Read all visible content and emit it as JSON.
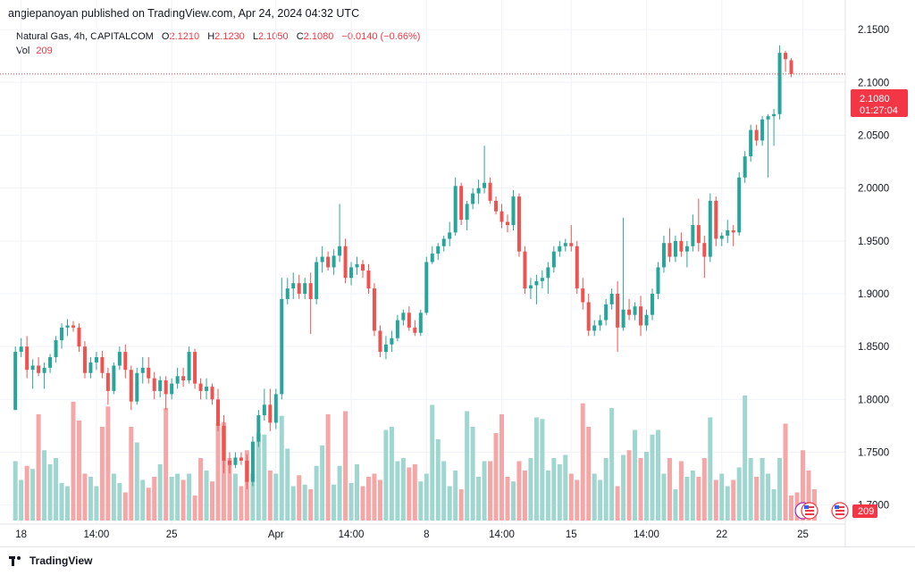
{
  "header": {
    "publisher": "angiepanoyan published on TradingView.com, Apr 24, 2024 04:32 UTC"
  },
  "legend": {
    "symbol": "Natural Gas, 4h, CAPITALCOM",
    "open_label": "O",
    "open": "2.1210",
    "high_label": "H",
    "high": "2.1230",
    "low_label": "L",
    "low": "2.1050",
    "close_label": "C",
    "close": "2.1080",
    "change": "−0.0140 (−0.66%)",
    "vol_label": "Vol",
    "vol": "209"
  },
  "price_tag": {
    "price": "2.1080",
    "countdown": "01:27:04"
  },
  "vol_tag": "209",
  "footer": {
    "brand": "TradingView"
  },
  "colors": {
    "up": "#26a69a",
    "down": "#ef5350",
    "vol_up": "#9fd6d0",
    "vol_down": "#f5a6a6",
    "tag": "#f23645"
  },
  "icons": [
    "tradingview-logo-icon",
    "us-flag-event-icon"
  ],
  "chart_data": {
    "type": "candlestick",
    "title": "Natural Gas, 4h, CAPITALCOM",
    "y_axis_ticks": [
      "2.1500",
      "2.1000",
      "2.0500",
      "2.0000",
      "1.9500",
      "1.9000",
      "1.8500",
      "1.8000",
      "1.7500",
      "1.7000"
    ],
    "ylim": [
      1.682,
      2.178
    ],
    "x_axis_ticks": [
      "18",
      "14:00",
      "25",
      "Apr",
      "14:00",
      "8",
      "14:00",
      "15",
      "14:00",
      "22",
      "25"
    ],
    "x_tick_bars": [
      1,
      14,
      27,
      45,
      58,
      71,
      84,
      96,
      109,
      122,
      136
    ],
    "grid": true,
    "last_price": 2.108,
    "candles": [
      [
        1.79,
        1.85,
        1.79,
        1.845
      ],
      [
        1.845,
        1.858,
        1.84,
        1.85
      ],
      [
        1.85,
        1.86,
        1.82,
        1.828
      ],
      [
        1.828,
        1.838,
        1.81,
        1.832
      ],
      [
        1.832,
        1.84,
        1.822,
        1.825
      ],
      [
        1.825,
        1.835,
        1.81,
        1.83
      ],
      [
        1.83,
        1.843,
        1.825,
        1.84
      ],
      [
        1.84,
        1.86,
        1.835,
        1.856
      ],
      [
        1.856,
        1.872,
        1.848,
        1.868
      ],
      [
        1.868,
        1.876,
        1.86,
        1.87
      ],
      [
        1.87,
        1.874,
        1.864,
        1.868
      ],
      [
        1.868,
        1.872,
        1.845,
        1.85
      ],
      [
        1.85,
        1.855,
        1.82,
        1.825
      ],
      [
        1.825,
        1.84,
        1.82,
        1.835
      ],
      [
        1.835,
        1.845,
        1.828,
        1.84
      ],
      [
        1.84,
        1.846,
        1.82,
        1.825
      ],
      [
        1.825,
        1.83,
        1.795,
        1.808
      ],
      [
        1.808,
        1.835,
        1.805,
        1.832
      ],
      [
        1.832,
        1.85,
        1.828,
        1.845
      ],
      [
        1.845,
        1.852,
        1.82,
        1.828
      ],
      [
        1.828,
        1.832,
        1.79,
        1.798
      ],
      [
        1.798,
        1.83,
        1.795,
        1.825
      ],
      [
        1.825,
        1.84,
        1.815,
        1.83
      ],
      [
        1.83,
        1.84,
        1.815,
        1.82
      ],
      [
        1.82,
        1.826,
        1.8,
        1.808
      ],
      [
        1.808,
        1.822,
        1.802,
        1.818
      ],
      [
        1.818,
        1.822,
        1.79,
        1.805
      ],
      [
        1.805,
        1.82,
        1.8,
        1.815
      ],
      [
        1.815,
        1.83,
        1.81,
        1.822
      ],
      [
        1.822,
        1.83,
        1.812,
        1.818
      ],
      [
        1.818,
        1.85,
        1.815,
        1.845
      ],
      [
        1.845,
        1.848,
        1.81,
        1.815
      ],
      [
        1.815,
        1.82,
        1.8,
        1.808
      ],
      [
        1.808,
        1.82,
        1.8,
        1.812
      ],
      [
        1.812,
        1.815,
        1.795,
        1.8
      ],
      [
        1.8,
        1.81,
        1.77,
        1.775
      ],
      [
        1.775,
        1.785,
        1.73,
        1.742
      ],
      [
        1.742,
        1.75,
        1.73,
        1.738
      ],
      [
        1.738,
        1.75,
        1.735,
        1.745
      ],
      [
        1.745,
        1.75,
        1.738,
        1.742
      ],
      [
        1.742,
        1.748,
        1.715,
        1.722
      ],
      [
        1.722,
        1.765,
        1.718,
        1.76
      ],
      [
        1.76,
        1.79,
        1.755,
        1.785
      ],
      [
        1.785,
        1.81,
        1.78,
        1.795
      ],
      [
        1.795,
        1.81,
        1.77,
        1.778
      ],
      [
        1.778,
        1.81,
        1.772,
        1.805
      ],
      [
        1.805,
        1.915,
        1.8,
        1.895
      ],
      [
        1.895,
        1.915,
        1.89,
        1.905
      ],
      [
        1.905,
        1.92,
        1.895,
        1.91
      ],
      [
        1.91,
        1.918,
        1.895,
        1.9
      ],
      [
        1.9,
        1.915,
        1.895,
        1.91
      ],
      [
        1.91,
        1.92,
        1.862,
        1.895
      ],
      [
        1.895,
        1.935,
        1.89,
        1.93
      ],
      [
        1.93,
        1.945,
        1.92,
        1.935
      ],
      [
        1.935,
        1.94,
        1.922,
        1.925
      ],
      [
        1.925,
        1.942,
        1.918,
        1.936
      ],
      [
        1.936,
        1.985,
        1.93,
        1.945
      ],
      [
        1.945,
        1.952,
        1.91,
        1.915
      ],
      [
        1.915,
        1.93,
        1.908,
        1.925
      ],
      [
        1.925,
        1.935,
        1.918,
        1.928
      ],
      [
        1.928,
        1.932,
        1.915,
        1.922
      ],
      [
        1.922,
        1.928,
        1.9,
        1.905
      ],
      [
        1.905,
        1.91,
        1.86,
        1.865
      ],
      [
        1.865,
        1.87,
        1.84,
        1.845
      ],
      [
        1.845,
        1.86,
        1.838,
        1.852
      ],
      [
        1.852,
        1.865,
        1.845,
        1.858
      ],
      [
        1.858,
        1.88,
        1.855,
        1.875
      ],
      [
        1.875,
        1.885,
        1.87,
        1.882
      ],
      [
        1.882,
        1.888,
        1.865,
        1.868
      ],
      [
        1.868,
        1.875,
        1.86,
        1.863
      ],
      [
        1.863,
        1.885,
        1.86,
        1.882
      ],
      [
        1.882,
        1.935,
        1.88,
        1.93
      ],
      [
        1.93,
        1.945,
        1.928,
        1.938
      ],
      [
        1.938,
        1.948,
        1.932,
        1.945
      ],
      [
        1.945,
        1.955,
        1.94,
        1.952
      ],
      [
        1.952,
        1.968,
        1.945,
        1.958
      ],
      [
        1.958,
        2.01,
        1.955,
        2.002
      ],
      [
        2.002,
        2.005,
        1.965,
        1.97
      ],
      [
        1.97,
        1.988,
        1.96,
        1.985
      ],
      [
        1.985,
        2.0,
        1.98,
        1.995
      ],
      [
        1.995,
        2.008,
        1.985,
        2.0
      ],
      [
        2.0,
        2.04,
        1.995,
        2.005
      ],
      [
        2.005,
        2.01,
        1.985,
        1.988
      ],
      [
        1.988,
        1.992,
        1.975,
        1.978
      ],
      [
        1.978,
        1.985,
        1.962,
        1.968
      ],
      [
        1.968,
        1.975,
        1.958,
        1.965
      ],
      [
        1.965,
        1.998,
        1.96,
        1.992
      ],
      [
        1.992,
        1.995,
        1.935,
        1.94
      ],
      [
        1.94,
        1.945,
        1.9,
        1.905
      ],
      [
        1.905,
        1.915,
        1.895,
        1.908
      ],
      [
        1.908,
        1.918,
        1.89,
        1.912
      ],
      [
        1.912,
        1.922,
        1.905,
        1.915
      ],
      [
        1.915,
        1.93,
        1.9,
        1.925
      ],
      [
        1.925,
        1.945,
        1.92,
        1.94
      ],
      [
        1.94,
        1.95,
        1.935,
        1.945
      ],
      [
        1.945,
        1.952,
        1.94,
        1.948
      ],
      [
        1.948,
        1.965,
        1.94,
        1.945
      ],
      [
        1.945,
        1.95,
        1.9,
        1.905
      ],
      [
        1.905,
        1.915,
        1.885,
        1.892
      ],
      [
        1.892,
        1.9,
        1.86,
        1.865
      ],
      [
        1.865,
        1.875,
        1.86,
        1.87
      ],
      [
        1.87,
        1.88,
        1.865,
        1.875
      ],
      [
        1.875,
        1.895,
        1.87,
        1.89
      ],
      [
        1.89,
        1.905,
        1.885,
        1.9
      ],
      [
        1.9,
        1.912,
        1.845,
        1.868
      ],
      [
        1.868,
        1.972,
        1.865,
        1.885
      ],
      [
        1.885,
        1.895,
        1.875,
        1.88
      ],
      [
        1.88,
        1.892,
        1.875,
        1.888
      ],
      [
        1.888,
        1.898,
        1.86,
        1.87
      ],
      [
        1.87,
        1.885,
        1.865,
        1.88
      ],
      [
        1.88,
        1.905,
        1.875,
        1.9
      ],
      [
        1.9,
        1.93,
        1.895,
        1.925
      ],
      [
        1.925,
        1.955,
        1.92,
        1.948
      ],
      [
        1.948,
        1.962,
        1.93,
        1.935
      ],
      [
        1.935,
        1.955,
        1.93,
        1.95
      ],
      [
        1.95,
        1.958,
        1.935,
        1.94
      ],
      [
        1.94,
        1.95,
        1.925,
        1.945
      ],
      [
        1.945,
        1.975,
        1.94,
        1.965
      ],
      [
        1.965,
        1.99,
        1.94,
        1.948
      ],
      [
        1.948,
        1.955,
        1.915,
        1.935
      ],
      [
        1.935,
        1.995,
        1.93,
        1.988
      ],
      [
        1.988,
        1.992,
        1.945,
        1.952
      ],
      [
        1.952,
        1.958,
        1.945,
        1.955
      ],
      [
        1.955,
        1.97,
        1.948,
        1.96
      ],
      [
        1.96,
        1.965,
        1.945,
        1.958
      ],
      [
        1.958,
        2.015,
        1.955,
        2.01
      ],
      [
        2.01,
        2.035,
        2.005,
        2.03
      ],
      [
        2.03,
        2.06,
        2.025,
        2.055
      ],
      [
        2.055,
        2.06,
        2.04,
        2.045
      ],
      [
        2.045,
        2.068,
        2.04,
        2.065
      ],
      [
        2.065,
        2.07,
        2.01,
        2.068
      ],
      [
        2.068,
        2.075,
        2.04,
        2.07
      ],
      [
        2.07,
        2.135,
        2.065,
        2.128
      ],
      [
        2.128,
        2.13,
        2.11,
        2.122
      ],
      [
        2.121,
        2.123,
        2.105,
        2.108
      ]
    ],
    "volumes": [
      38,
      26,
      35,
      33,
      68,
      45,
      36,
      40,
      24,
      22,
      76,
      64,
      30,
      28,
      22,
      60,
      73,
      30,
      24,
      18,
      60,
      50,
      26,
      21,
      28,
      36,
      72,
      28,
      30,
      26,
      30,
      16,
      40,
      32,
      25,
      62,
      63,
      40,
      30,
      22,
      45,
      30,
      56,
      55,
      32,
      30,
      67,
      46,
      22,
      29,
      23,
      20,
      35,
      48,
      68,
      23,
      35,
      70,
      24,
      36,
      22,
      28,
      30,
      26,
      58,
      60,
      38,
      40,
      34,
      36,
      25,
      30,
      74,
      52,
      38,
      22,
      32,
      20,
      70,
      60,
      28,
      38,
      38,
      56,
      68,
      28,
      25,
      38,
      32,
      40,
      66,
      65,
      32,
      40,
      36,
      42,
      30,
      26,
      75,
      60,
      30,
      26,
      40,
      72,
      22,
      42,
      45,
      58,
      40,
      44,
      55,
      58,
      30,
      40,
      20,
      38,
      28,
      32,
      28,
      40,
      66,
      26,
      30,
      22,
      26,
      34,
      80,
      40,
      28,
      40,
      30,
      20,
      40,
      62,
      16,
      18,
      45,
      32,
      20
    ]
  }
}
